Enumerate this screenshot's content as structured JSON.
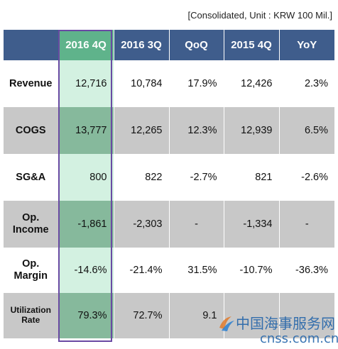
{
  "caption": "[Consolidated, Unit : KRW 100 Mil.]",
  "table": {
    "columns": [
      "",
      "2016 4Q",
      "2016 3Q",
      "QoQ",
      "2015 4Q",
      "YoY"
    ],
    "rows": [
      {
        "label": "Revenue",
        "cells": [
          "12,716",
          "10,784",
          "17.9%",
          "12,426",
          "2.3%"
        ]
      },
      {
        "label": "COGS",
        "cells": [
          "13,777",
          "12,265",
          "12.3%",
          "12,939",
          "6.5%"
        ]
      },
      {
        "label": "SG&A",
        "cells": [
          "800",
          "822",
          "-2.7%",
          "821",
          "-2.6%"
        ]
      },
      {
        "label": "Op.\nIncome",
        "cells": [
          "-1,861",
          "-2,303",
          "-",
          "-1,334",
          "-"
        ]
      },
      {
        "label": "Op.\nMargin",
        "cells": [
          "-14.6%",
          "-21.4%",
          "31.5%",
          "-10.7%",
          "-36.3%"
        ]
      },
      {
        "label": "Utilization\nRate",
        "cells": [
          "79.3%",
          "72.7%",
          "9.1",
          "",
          ""
        ]
      }
    ]
  },
  "watermark": {
    "cn": "中国海事服务网",
    "en": "cnss.com.cn"
  },
  "colors": {
    "header": "#3f5d8c",
    "highlight_header": "#5fb38b",
    "highlight_border": "#6a4aa3",
    "band": "#c8c8c8"
  }
}
